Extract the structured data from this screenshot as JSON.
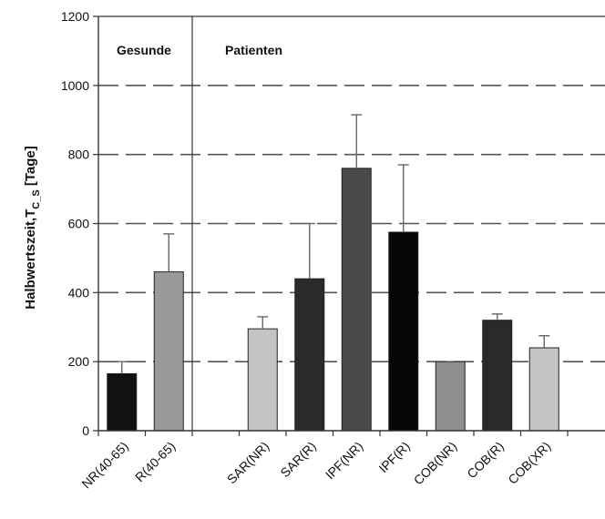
{
  "chart_data": {
    "type": "bar",
    "ylabel": "Halbwertszeit,T",
    "ylabel_sub": "C_S",
    "ylabel_unit": " [Tage]",
    "ylim": [
      0,
      1200
    ],
    "yticks": [
      0,
      200,
      400,
      600,
      800,
      1000,
      1200
    ],
    "grid": "dashed-horizontal",
    "groups": [
      {
        "label": "Gesunde",
        "start": 0,
        "end": 1
      },
      {
        "label": "Patienten",
        "start": 2,
        "end": 9
      }
    ],
    "categories": [
      "NR(40-65)",
      "R(40-65)",
      "SAR(NR)",
      "SAR(R)",
      "IPF(NR)",
      "IPF(R)",
      "COB(NR)",
      "COB(R)",
      "COB(XR)"
    ],
    "values": [
      165,
      460,
      295,
      440,
      760,
      575,
      200,
      320,
      240
    ],
    "errors": [
      35,
      110,
      35,
      160,
      155,
      195,
      0,
      18,
      35
    ],
    "colors": [
      "#111111",
      "#9a9a9a",
      "#c4c4c4",
      "#2a2a2a",
      "#4a4a4a",
      "#060606",
      "#8e8e8e",
      "#2a2a2a",
      "#c4c4c4"
    ]
  }
}
